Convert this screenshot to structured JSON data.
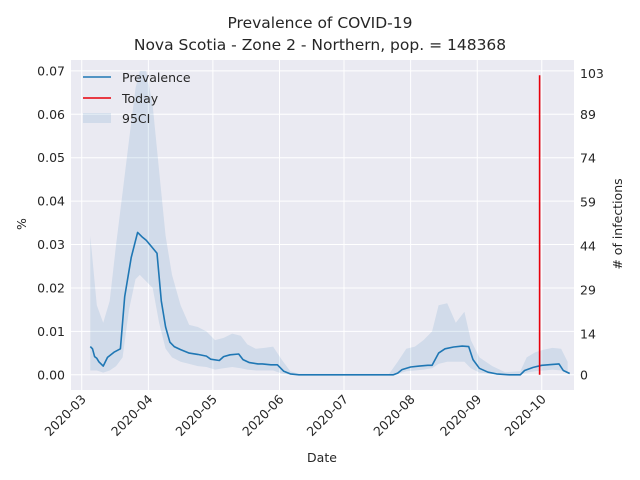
{
  "chart_data": {
    "type": "line",
    "title": "Prevalence of COVID-19",
    "subtitle": "Nova Scotia - Zone 2 - Northern, pop. = 148368",
    "xlabel": "Date",
    "ylabel": "%",
    "ylabel_right": "# of infections",
    "x_ticks": [
      "2020-03",
      "2020-04",
      "2020-05",
      "2020-06",
      "2020-07",
      "2020-08",
      "2020-09",
      "2020-10"
    ],
    "y_ticks": [
      "0.00",
      "0.01",
      "0.02",
      "0.03",
      "0.04",
      "0.05",
      "0.06",
      "0.07"
    ],
    "y2_ticks": [
      "0",
      "14",
      "29",
      "44",
      "59",
      "74",
      "89",
      "103"
    ],
    "xlim": [
      "2020-02-25",
      "2020-10-16"
    ],
    "ylim": [
      -0.0035,
      0.0725
    ],
    "grid": true,
    "legend_position": "top-left",
    "legend": [
      "Prevalence",
      "Today",
      "95CI"
    ],
    "colors": {
      "prevalence": "#1f77b4",
      "today": "#e8000b",
      "ci_fill": "#1f77b4",
      "plot_bg": "#eaeaf2",
      "grid": "#ffffff"
    },
    "series": [
      {
        "name": "Prevalence",
        "points": [
          [
            "2020-03-05",
            0.0065
          ],
          [
            "2020-03-06",
            0.006
          ],
          [
            "2020-03-07",
            0.0042
          ],
          [
            "2020-03-08",
            0.0038
          ],
          [
            "2020-03-09",
            0.003
          ],
          [
            "2020-03-11",
            0.002
          ],
          [
            "2020-03-13",
            0.004
          ],
          [
            "2020-03-16",
            0.0052
          ],
          [
            "2020-03-19",
            0.006
          ],
          [
            "2020-03-21",
            0.018
          ],
          [
            "2020-03-24",
            0.027
          ],
          [
            "2020-03-27",
            0.0328
          ],
          [
            "2020-03-29",
            0.0318
          ],
          [
            "2020-03-31",
            0.031
          ],
          [
            "2020-04-02",
            0.0298
          ],
          [
            "2020-04-05",
            0.028
          ],
          [
            "2020-04-07",
            0.017
          ],
          [
            "2020-04-09",
            0.011
          ],
          [
            "2020-04-11",
            0.0075
          ],
          [
            "2020-04-13",
            0.0065
          ],
          [
            "2020-04-16",
            0.0058
          ],
          [
            "2020-04-20",
            0.005
          ],
          [
            "2020-04-24",
            0.0047
          ],
          [
            "2020-04-28",
            0.0043
          ],
          [
            "2020-04-30",
            0.0036
          ],
          [
            "2020-05-04",
            0.0033
          ],
          [
            "2020-05-06",
            0.0042
          ],
          [
            "2020-05-09",
            0.0046
          ],
          [
            "2020-05-13",
            0.0048
          ],
          [
            "2020-05-15",
            0.0035
          ],
          [
            "2020-05-18",
            0.0028
          ],
          [
            "2020-05-22",
            0.0025
          ],
          [
            "2020-05-24",
            0.0025
          ],
          [
            "2020-05-28",
            0.0023
          ],
          [
            "2020-05-31",
            0.0023
          ],
          [
            "2020-06-03",
            0.0008
          ],
          [
            "2020-06-06",
            0.0002
          ],
          [
            "2020-06-10",
            0.0
          ],
          [
            "2020-07-15",
            0.0
          ],
          [
            "2020-07-24",
            0.0
          ],
          [
            "2020-07-26",
            0.0004
          ],
          [
            "2020-07-28",
            0.0012
          ],
          [
            "2020-08-01",
            0.0018
          ],
          [
            "2020-08-05",
            0.002
          ],
          [
            "2020-08-09",
            0.0022
          ],
          [
            "2020-08-11",
            0.0022
          ],
          [
            "2020-08-14",
            0.005
          ],
          [
            "2020-08-17",
            0.006
          ],
          [
            "2020-08-21",
            0.0064
          ],
          [
            "2020-08-25",
            0.0066
          ],
          [
            "2020-08-28",
            0.0065
          ],
          [
            "2020-08-30",
            0.0035
          ],
          [
            "2020-09-02",
            0.0015
          ],
          [
            "2020-09-06",
            0.0006
          ],
          [
            "2020-09-10",
            0.0002
          ],
          [
            "2020-09-16",
            0.0
          ],
          [
            "2020-09-21",
            0.0
          ],
          [
            "2020-09-23",
            0.001
          ],
          [
            "2020-09-27",
            0.0017
          ],
          [
            "2020-10-01",
            0.0022
          ],
          [
            "2020-10-06",
            0.0024
          ],
          [
            "2020-10-09",
            0.0025
          ],
          [
            "2020-10-11",
            0.001
          ],
          [
            "2020-10-14",
            0.0003
          ],
          [
            "2020-10-20",
            0.0001
          ],
          [
            "2020-11-01",
            0.0
          ]
        ]
      }
    ],
    "ci": [
      [
        "2020-03-05",
        0.001,
        0.032
      ],
      [
        "2020-03-08",
        0.001,
        0.016
      ],
      [
        "2020-03-11",
        0.0005,
        0.012
      ],
      [
        "2020-03-14",
        0.001,
        0.017
      ],
      [
        "2020-03-17",
        0.002,
        0.03
      ],
      [
        "2020-03-20",
        0.004,
        0.042
      ],
      [
        "2020-03-23",
        0.015,
        0.054
      ],
      [
        "2020-03-26",
        0.022,
        0.066
      ],
      [
        "2020-03-28",
        0.023,
        0.07
      ],
      [
        "2020-03-31",
        0.0215,
        0.07
      ],
      [
        "2020-04-03",
        0.02,
        0.062
      ],
      [
        "2020-04-06",
        0.012,
        0.047
      ],
      [
        "2020-04-09",
        0.006,
        0.032
      ],
      [
        "2020-04-12",
        0.004,
        0.023
      ],
      [
        "2020-04-16",
        0.003,
        0.016
      ],
      [
        "2020-04-20",
        0.0025,
        0.0115
      ],
      [
        "2020-04-24",
        0.002,
        0.011
      ],
      [
        "2020-04-28",
        0.0018,
        0.01
      ],
      [
        "2020-05-02",
        0.0012,
        0.008
      ],
      [
        "2020-05-06",
        0.0015,
        0.0085
      ],
      [
        "2020-05-10",
        0.0018,
        0.0095
      ],
      [
        "2020-05-14",
        0.0015,
        0.009
      ],
      [
        "2020-05-17",
        0.0012,
        0.007
      ],
      [
        "2020-05-21",
        0.001,
        0.006
      ],
      [
        "2020-05-25",
        0.001,
        0.0062
      ],
      [
        "2020-05-29",
        0.001,
        0.0065
      ],
      [
        "2020-06-02",
        0.0003,
        0.0035
      ],
      [
        "2020-06-06",
        0.0,
        0.0008
      ],
      [
        "2020-06-10",
        0.0,
        0.0002
      ],
      [
        "2020-07-22",
        0.0,
        0.0002
      ],
      [
        "2020-07-26",
        0.0002,
        0.003
      ],
      [
        "2020-07-30",
        0.0008,
        0.006
      ],
      [
        "2020-08-03",
        0.001,
        0.0065
      ],
      [
        "2020-08-07",
        0.0012,
        0.008
      ],
      [
        "2020-08-11",
        0.0015,
        0.01
      ],
      [
        "2020-08-14",
        0.0025,
        0.016
      ],
      [
        "2020-08-18",
        0.003,
        0.0165
      ],
      [
        "2020-08-22",
        0.003,
        0.012
      ],
      [
        "2020-08-26",
        0.003,
        0.0145
      ],
      [
        "2020-08-29",
        0.0015,
        0.008
      ],
      [
        "2020-09-02",
        0.0005,
        0.004
      ],
      [
        "2020-09-08",
        0.0002,
        0.002
      ],
      [
        "2020-09-14",
        0.0,
        0.0006
      ],
      [
        "2020-09-21",
        0.0,
        0.0008
      ],
      [
        "2020-09-24",
        0.0005,
        0.004
      ],
      [
        "2020-09-28",
        0.0008,
        0.0052
      ],
      [
        "2020-10-02",
        0.001,
        0.0058
      ],
      [
        "2020-10-06",
        0.0012,
        0.0062
      ],
      [
        "2020-10-10",
        0.001,
        0.006
      ],
      [
        "2020-10-13",
        0.0005,
        0.003
      ],
      [
        "2020-10-17",
        0.0002,
        0.0012
      ],
      [
        "2020-11-01",
        0.0,
        0.0002
      ]
    ],
    "today": {
      "date": "2020-09-30",
      "y_from": 0.0,
      "y_to": 0.069
    }
  }
}
